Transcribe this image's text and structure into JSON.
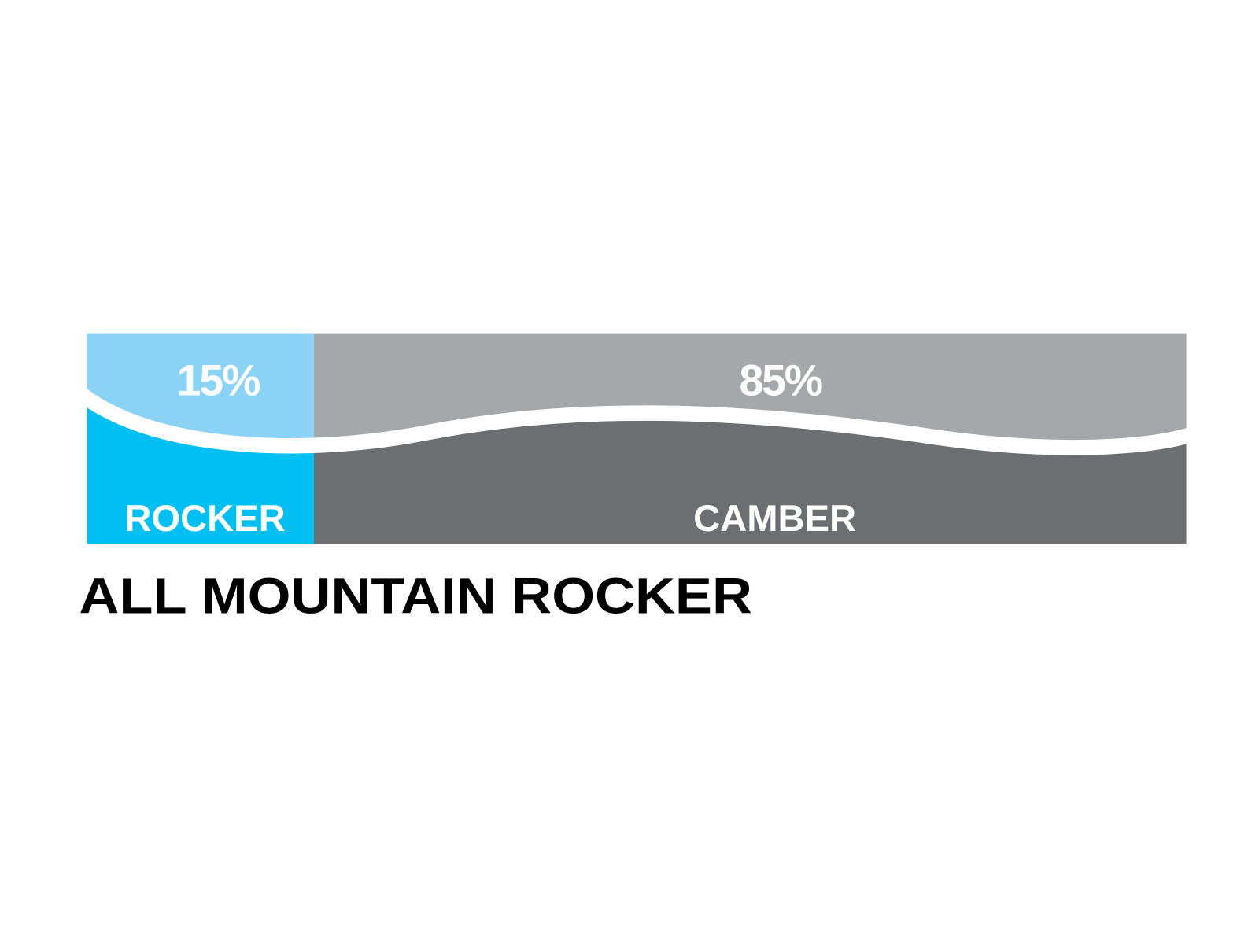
{
  "diagram": {
    "title": "ALL MOUNTAIN ROCKER",
    "segments": [
      {
        "label": "ROCKER",
        "percent_label": "15%",
        "percent": 15,
        "color_top": "#8AD3F7",
        "color_bottom": "#00C0F3"
      },
      {
        "label": "CAMBER",
        "percent_label": "85%",
        "percent": 85,
        "color_top": "#A6A7AA",
        "color_bottom": "#6D6E71"
      }
    ],
    "divider_color": "#FFFFFF",
    "text_color": "#FFFFFF",
    "title_color": "#000000"
  }
}
